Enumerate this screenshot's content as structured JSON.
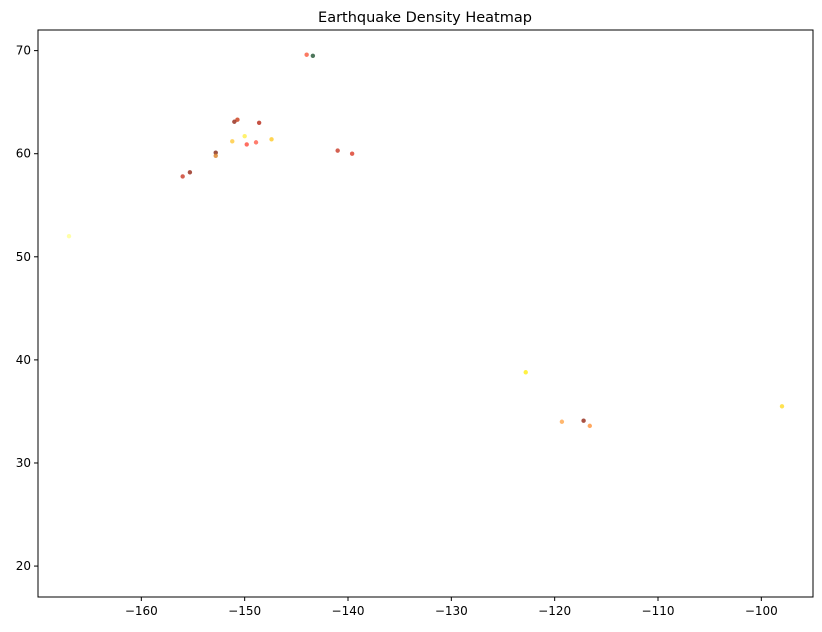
{
  "chart_data": {
    "type": "scatter",
    "title": "Earthquake Density Heatmap",
    "xlabel": "",
    "ylabel": "",
    "xlim": [
      -170,
      -95
    ],
    "ylim": [
      17,
      72
    ],
    "x_ticks": [
      -160,
      -150,
      -140,
      -130,
      -120,
      -110,
      -100
    ],
    "y_ticks": [
      20,
      30,
      40,
      50,
      60,
      70
    ],
    "grid": false,
    "points": [
      {
        "x": -144.0,
        "y": 69.6,
        "color": "#fa6347"
      },
      {
        "x": -143.4,
        "y": 69.5,
        "color": "#2e5e3e"
      },
      {
        "x": -150.7,
        "y": 63.3,
        "color": "#cc4422"
      },
      {
        "x": -151.0,
        "y": 63.1,
        "color": "#993322"
      },
      {
        "x": -148.6,
        "y": 63.0,
        "color": "#bb3322"
      },
      {
        "x": -150.0,
        "y": 61.7,
        "color": "#ffee55"
      },
      {
        "x": -147.4,
        "y": 61.4,
        "color": "#ffcc33"
      },
      {
        "x": -151.2,
        "y": 61.2,
        "color": "#ffcc44"
      },
      {
        "x": -148.9,
        "y": 61.1,
        "color": "#ff6655"
      },
      {
        "x": -149.8,
        "y": 60.9,
        "color": "#ff5544"
      },
      {
        "x": -141.0,
        "y": 60.3,
        "color": "#cc4433"
      },
      {
        "x": -152.8,
        "y": 60.1,
        "color": "#883322"
      },
      {
        "x": -139.6,
        "y": 60.0,
        "color": "#dd4433"
      },
      {
        "x": -152.8,
        "y": 59.8,
        "color": "#dd8833"
      },
      {
        "x": -155.3,
        "y": 58.2,
        "color": "#993322"
      },
      {
        "x": -156.0,
        "y": 57.8,
        "color": "#cc4433"
      },
      {
        "x": -167.0,
        "y": 52.0,
        "color": "#ffff99"
      },
      {
        "x": -122.8,
        "y": 38.8,
        "color": "#ffee22"
      },
      {
        "x": -119.3,
        "y": 34.0,
        "color": "#ffaa55"
      },
      {
        "x": -117.2,
        "y": 34.1,
        "color": "#993322"
      },
      {
        "x": -116.6,
        "y": 33.6,
        "color": "#ff9944"
      },
      {
        "x": -98.0,
        "y": 35.5,
        "color": "#ffdd33"
      }
    ]
  }
}
